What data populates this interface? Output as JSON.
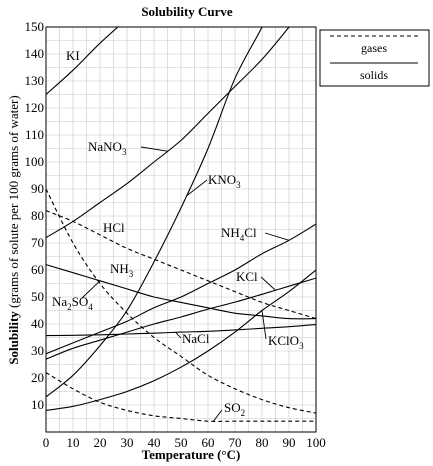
{
  "chart_data": {
    "type": "line",
    "title": "Solubility Curve",
    "xlabel": "Temperature (°C)",
    "ylabel_bold": "Solubility",
    "ylabel_rest": " (grams of solute per 100 grams of water)",
    "xlim": [
      0,
      100
    ],
    "ylim": [
      0,
      150
    ],
    "xticks": [
      0,
      10,
      20,
      30,
      40,
      50,
      60,
      70,
      80,
      90,
      100
    ],
    "yticks": [
      10,
      20,
      30,
      40,
      50,
      60,
      70,
      80,
      90,
      100,
      110,
      120,
      130,
      140,
      150
    ],
    "grid": true,
    "legend": {
      "position": "top-right",
      "entries": [
        {
          "label": "gases",
          "style": "dashed"
        },
        {
          "label": "solids",
          "style": "solid"
        }
      ]
    },
    "series": [
      {
        "name": "KI",
        "phase": "solid",
        "x": [
          0,
          10,
          20,
          30
        ],
        "y": [
          125,
          134,
          144,
          153
        ]
      },
      {
        "name": "NaNO3",
        "phase": "solid",
        "x": [
          0,
          10,
          20,
          30,
          40,
          50,
          60,
          70,
          80,
          90,
          100
        ],
        "y": [
          72,
          78,
          85,
          92,
          100,
          108,
          118,
          128,
          138,
          150,
          163
        ]
      },
      {
        "name": "KNO3",
        "phase": "solid",
        "x": [
          0,
          10,
          20,
          30,
          40,
          50,
          60,
          70,
          80,
          84
        ],
        "y": [
          13,
          21,
          32,
          45,
          63,
          83,
          105,
          131,
          150,
          160
        ]
      },
      {
        "name": "NH4Cl",
        "phase": "solid",
        "x": [
          0,
          10,
          20,
          30,
          40,
          50,
          60,
          70,
          80,
          90,
          100
        ],
        "y": [
          29,
          33,
          37,
          41,
          46,
          50,
          55,
          60,
          66,
          71,
          77
        ]
      },
      {
        "name": "KCl",
        "phase": "solid",
        "x": [
          0,
          10,
          20,
          30,
          40,
          50,
          60,
          70,
          80,
          90,
          100
        ],
        "y": [
          27,
          31,
          34,
          37,
          40,
          42.6,
          45.5,
          48.1,
          51,
          54,
          57
        ]
      },
      {
        "name": "NaCl",
        "phase": "solid",
        "x": [
          0,
          10,
          20,
          30,
          40,
          50,
          60,
          70,
          80,
          90,
          100
        ],
        "y": [
          35.7,
          35.8,
          36,
          36.3,
          36.6,
          37,
          37.3,
          37.8,
          38.4,
          39,
          39.8
        ]
      },
      {
        "name": "KClO3",
        "phase": "solid",
        "x": [
          0,
          10,
          20,
          30,
          40,
          50,
          60,
          70,
          80,
          90,
          100
        ],
        "y": [
          8,
          9.5,
          12,
          15,
          19,
          24,
          30,
          37,
          45,
          52,
          60
        ]
      },
      {
        "name": "Na2SO4",
        "phase": "solid",
        "x": [
          0,
          10,
          20,
          30,
          40,
          50,
          60,
          70,
          80,
          90,
          100
        ],
        "y": [
          62,
          59,
          56,
          53,
          50,
          48,
          46,
          44,
          43,
          42,
          42
        ]
      },
      {
        "name": "HCl",
        "phase": "gas",
        "x": [
          0,
          10,
          20,
          30,
          40,
          50,
          60,
          70,
          80,
          90,
          100
        ],
        "y": [
          82,
          78,
          73,
          68,
          64,
          60,
          56,
          52,
          48,
          45,
          42
        ]
      },
      {
        "name": "NH3",
        "phase": "gas",
        "x": [
          0,
          10,
          20,
          30,
          40,
          50,
          60,
          70,
          80,
          90,
          100
        ],
        "y": [
          90,
          70,
          55,
          44,
          35,
          28,
          21,
          16,
          12,
          9,
          7
        ]
      },
      {
        "name": "SO2",
        "phase": "gas",
        "x": [
          0,
          10,
          20,
          30,
          40,
          50,
          60,
          70,
          80,
          90,
          100
        ],
        "y": [
          22,
          16,
          11,
          8,
          6,
          5,
          4,
          4,
          4,
          4,
          4
        ]
      }
    ],
    "labels": [
      {
        "series": "KI",
        "text": "KI"
      },
      {
        "series": "NaNO3",
        "text": "NaNO",
        "sub": "3"
      },
      {
        "series": "KNO3",
        "text": "KNO",
        "sub": "3"
      },
      {
        "series": "NH4Cl",
        "pre": "NH",
        "sub": "4",
        "post": "Cl"
      },
      {
        "series": "KCl",
        "text": "KCl"
      },
      {
        "series": "NaCl",
        "text": "NaCl"
      },
      {
        "series": "KClO3",
        "text": "KClO",
        "sub": "3"
      },
      {
        "series": "Na2SO4",
        "pre": "Na",
        "sub": "2",
        "post": "SO",
        "sub2": "4"
      },
      {
        "series": "HCl",
        "text": "HCl"
      },
      {
        "series": "NH3",
        "text": "NH",
        "sub": "3"
      },
      {
        "series": "SO2",
        "text": "SO",
        "sub": "2"
      }
    ]
  }
}
